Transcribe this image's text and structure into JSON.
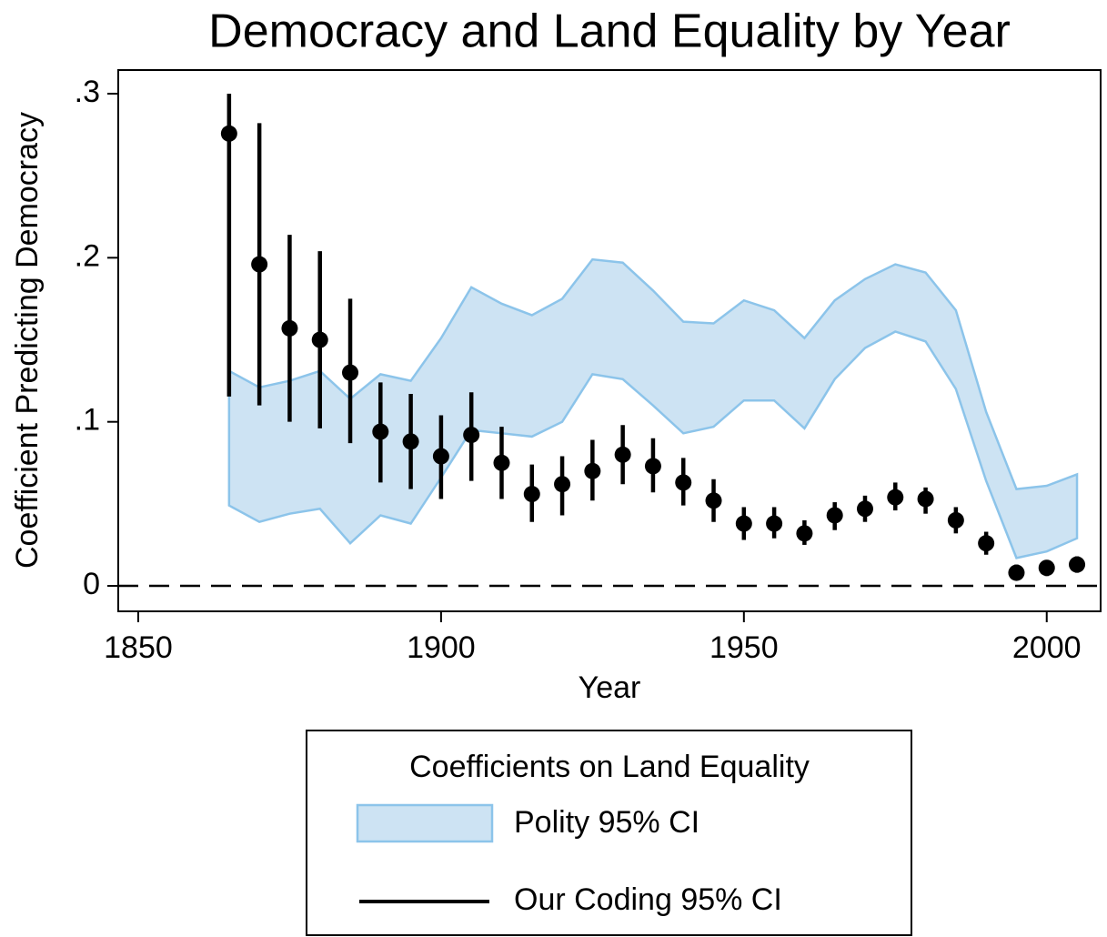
{
  "chart_data": {
    "type": "errorbar",
    "title": "Democracy and Land Equality by Year",
    "x_label": "Year",
    "y_label": "Coefficient Predicting Democracy",
    "x": [
      1865,
      1870,
      1875,
      1880,
      1885,
      1890,
      1895,
      1900,
      1905,
      1910,
      1915,
      1920,
      1925,
      1930,
      1935,
      1940,
      1945,
      1950,
      1955,
      1960,
      1965,
      1970,
      1975,
      1980,
      1985,
      1990,
      1995,
      2000,
      2005
    ],
    "series": [
      {
        "name": "Polity 95% CI",
        "kind": "band",
        "color": "#cde3f3",
        "edge_color": "#8cc4ea",
        "upper": [
          0.131,
          0.121,
          0.125,
          0.131,
          0.114,
          0.129,
          0.125,
          0.151,
          0.182,
          0.172,
          0.165,
          0.175,
          0.199,
          0.197,
          0.18,
          0.161,
          0.16,
          0.174,
          0.168,
          0.151,
          0.174,
          0.187,
          0.196,
          0.191,
          0.168,
          0.106,
          0.059,
          0.061,
          0.068
        ],
        "lower": [
          0.049,
          0.039,
          0.044,
          0.047,
          0.026,
          0.043,
          0.038,
          0.066,
          0.095,
          0.093,
          0.091,
          0.1,
          0.129,
          0.126,
          0.11,
          0.093,
          0.097,
          0.113,
          0.113,
          0.096,
          0.126,
          0.145,
          0.155,
          0.149,
          0.12,
          0.064,
          0.017,
          0.021,
          0.029
        ]
      },
      {
        "name": "Our Coding 95% CI",
        "kind": "points",
        "color": "#000000",
        "values": [
          0.2757,
          0.196,
          0.157,
          0.15,
          0.13,
          0.094,
          0.088,
          0.079,
          0.092,
          0.075,
          0.056,
          0.062,
          0.07,
          0.08,
          0.073,
          0.063,
          0.052,
          0.038,
          0.038,
          0.032,
          0.043,
          0.047,
          0.054,
          0.053,
          0.04,
          0.026,
          0.008,
          0.011,
          0.013
        ],
        "upper": [
          0.3,
          0.282,
          0.214,
          0.204,
          0.175,
          0.124,
          0.117,
          0.104,
          0.118,
          0.097,
          0.074,
          0.079,
          0.089,
          0.098,
          0.09,
          0.078,
          0.065,
          0.048,
          0.048,
          0.04,
          0.051,
          0.055,
          0.063,
          0.06,
          0.048,
          0.033,
          0.013,
          0.015,
          0.018
        ],
        "lower": [
          0.1154,
          0.11,
          0.1,
          0.096,
          0.087,
          0.063,
          0.059,
          0.053,
          0.064,
          0.053,
          0.039,
          0.043,
          0.052,
          0.062,
          0.057,
          0.049,
          0.039,
          0.028,
          0.029,
          0.025,
          0.034,
          0.039,
          0.046,
          0.044,
          0.032,
          0.019,
          0.004,
          0.006,
          0.008
        ]
      }
    ],
    "legend_title": "Coefficients on Land Equality",
    "reference_line": 0,
    "xlim": [
      1846.7,
      2008.9
    ],
    "ylim": [
      -0.0155,
      0.3144
    ],
    "xticks": [
      1850,
      1900,
      1950,
      2000
    ],
    "yticks": [
      0,
      {
        "value": 0.1,
        "label": ".1"
      },
      {
        "value": 0.2,
        "label": ".2"
      },
      {
        "value": 0.3,
        "label": ".3"
      }
    ]
  }
}
